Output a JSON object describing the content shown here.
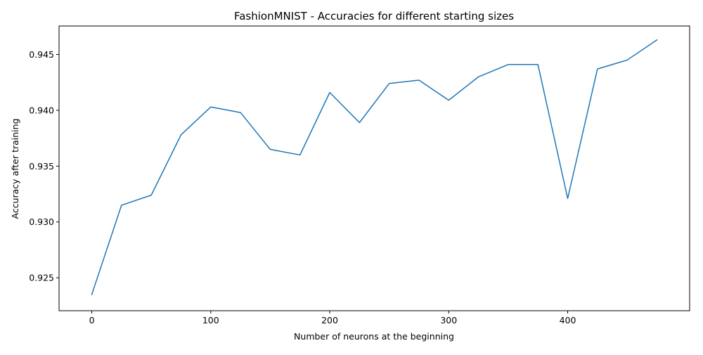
{
  "chart_data": {
    "type": "line",
    "title": "FashionMNIST - Accuracies for different starting sizes",
    "xlabel": "Number of neurons at the beginning",
    "ylabel": "Accuracy after training",
    "xlim": [
      -27.5,
      502.5
    ],
    "ylim": [
      0.92205,
      0.94755
    ],
    "xticks": [
      0,
      100,
      200,
      300,
      400
    ],
    "xtick_labels": [
      "0",
      "100",
      "200",
      "300",
      "400"
    ],
    "yticks": [
      0.925,
      0.93,
      0.935,
      0.94,
      0.945
    ],
    "ytick_labels": [
      "0.925",
      "0.930",
      "0.935",
      "0.940",
      "0.945"
    ],
    "grid": false,
    "legend": "none",
    "series": [
      {
        "color": "#1f77b4",
        "x": [
          0,
          25,
          50,
          75,
          100,
          125,
          150,
          175,
          200,
          225,
          250,
          275,
          300,
          325,
          350,
          375,
          400,
          425,
          450,
          475
        ],
        "y": [
          0.9235,
          0.9315,
          0.9324,
          0.9378,
          0.9403,
          0.9398,
          0.9365,
          0.936,
          0.9416,
          0.9389,
          0.9424,
          0.9427,
          0.9409,
          0.943,
          0.9441,
          0.9441,
          0.9321,
          0.9437,
          0.9445,
          0.9463
        ]
      }
    ]
  }
}
